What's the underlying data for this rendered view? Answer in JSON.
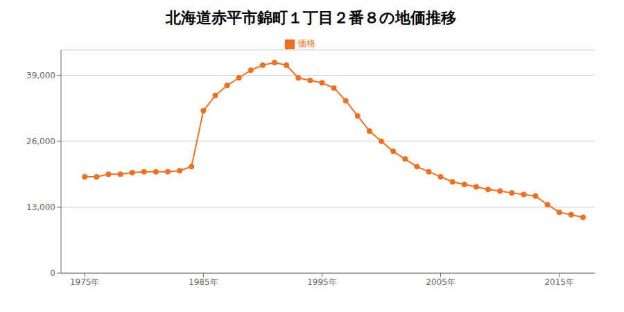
{
  "chart_data": {
    "type": "line",
    "title": "北海道赤平市錦町１丁目２番８の地価推移",
    "x": [
      1975,
      1976,
      1977,
      1978,
      1979,
      1980,
      1981,
      1982,
      1983,
      1984,
      1985,
      1986,
      1987,
      1988,
      1989,
      1990,
      1991,
      1992,
      1993,
      1994,
      1995,
      1996,
      1997,
      1998,
      1999,
      2000,
      2001,
      2002,
      2003,
      2004,
      2005,
      2006,
      2007,
      2008,
      2009,
      2010,
      2011,
      2012,
      2013,
      2014,
      2015,
      2016,
      2017
    ],
    "series": [
      {
        "name": "価格",
        "color": "#f07020",
        "marker": "circle",
        "values": [
          19000,
          19000,
          19500,
          19500,
          19800,
          20000,
          20000,
          20000,
          20200,
          21000,
          32000,
          35000,
          37000,
          38500,
          40000,
          41000,
          41500,
          41000,
          38500,
          38000,
          37500,
          36500,
          34000,
          31000,
          28000,
          26000,
          24000,
          22500,
          21000,
          20000,
          19000,
          18000,
          17500,
          17000,
          16500,
          16200,
          15800,
          15500,
          15200,
          13500,
          12000,
          11500,
          11000
        ]
      }
    ],
    "xlim": [
      1973,
      2018
    ],
    "xticks": [
      {
        "value": 1975,
        "label": "1975年"
      },
      {
        "value": 1985,
        "label": "1985年"
      },
      {
        "value": 1995,
        "label": "1995年"
      },
      {
        "value": 2005,
        "label": "2005年"
      },
      {
        "value": 2015,
        "label": "2015年"
      }
    ],
    "ylim": [
      0,
      44000
    ],
    "yticks": [
      0,
      {
        "value": 13000,
        "label": "13,000"
      },
      {
        "value": 26000,
        "label": "26,000"
      },
      {
        "value": 39000,
        "label": "39,000"
      }
    ],
    "grid": true,
    "legend": "top"
  }
}
